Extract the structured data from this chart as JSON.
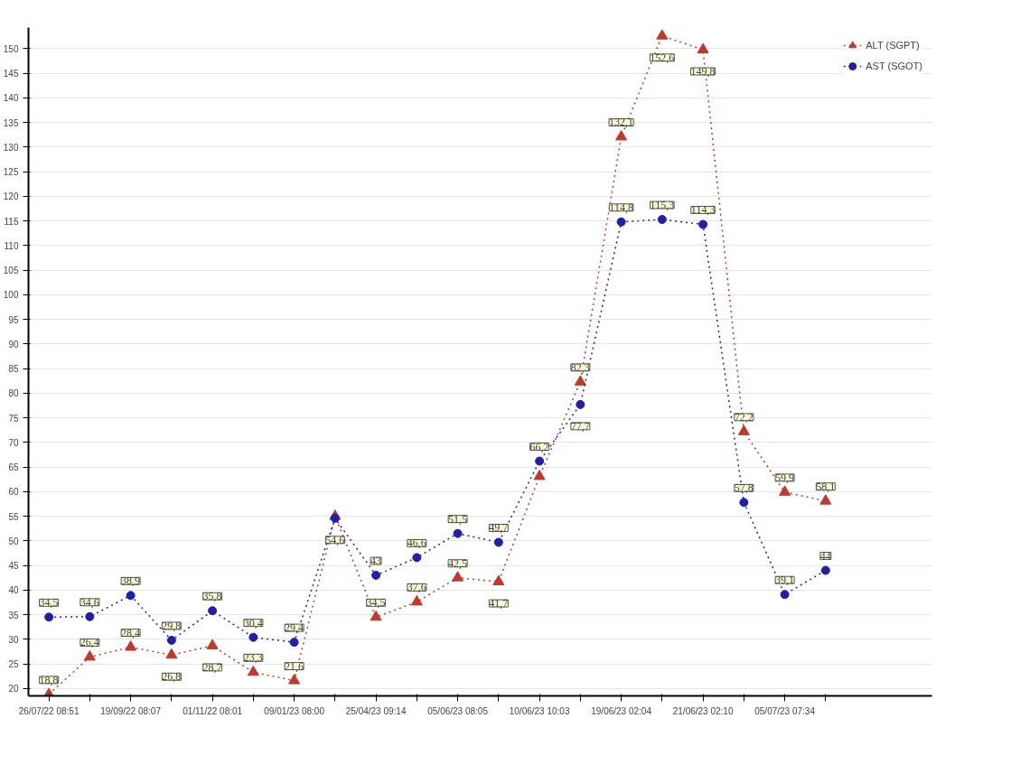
{
  "chart_data": {
    "type": "line",
    "categories": [
      "26/07/22 08:51",
      null,
      "19/09/22 08:07",
      null,
      "01/11/22 08:01",
      null,
      "09/01/23 08:00",
      null,
      "25/04/23 09:14",
      null,
      "05/06/23 08:05",
      null,
      "10/06/23 10:03",
      null,
      "19/06/23 02:04",
      null,
      "21/06/23 02:10",
      null,
      "05/07/23 07:34",
      null
    ],
    "series": [
      {
        "name": "ALT (SGPT)",
        "color": "#c0392b",
        "marker": "triangle",
        "values": [
          18.8,
          26.4,
          28.4,
          26.8,
          28.7,
          23.3,
          21.6,
          55,
          34.5,
          37.6,
          42.5,
          41.7,
          63.1,
          82.3,
          132.1,
          152.6,
          149.8,
          72.2,
          59.9,
          58.1
        ],
        "value_labels": [
          "18,8",
          "26,4",
          "28,4",
          "26,8",
          "28,7",
          "23,3",
          "21,6",
          null,
          "34,5",
          "37,6",
          "42,5",
          "41,7",
          null,
          "82,3",
          "132,1",
          "152,6",
          "149,8",
          "72,2",
          "59,9",
          "58,1"
        ]
      },
      {
        "name": "AST (SGOT)",
        "color": "#1f1fa8",
        "marker": "circle",
        "values": [
          34.5,
          34.6,
          38.9,
          29.8,
          35.8,
          30.4,
          29.4,
          54.6,
          43,
          46.6,
          51.5,
          49.7,
          66.2,
          77.7,
          114.8,
          115.3,
          114.3,
          57.8,
          39.1,
          44
        ],
        "value_labels": [
          "34,5",
          "34,6",
          "38,9",
          "29,8",
          "35,8",
          "30,4",
          "29,4",
          "54,6",
          "43",
          "46,6",
          "51,5",
          "49,7",
          "66,2",
          "77,7",
          "114,8",
          "115,3",
          "114,3",
          "57,8",
          "39,1",
          "44"
        ]
      }
    ],
    "ylim": [
      18.5,
      154.3
    ],
    "yticks": [
      20,
      25,
      30,
      35,
      40,
      45,
      50,
      55,
      60,
      65,
      70,
      75,
      80,
      85,
      90,
      95,
      100,
      105,
      110,
      115,
      120,
      125,
      130,
      135,
      140,
      145,
      150
    ],
    "grid": "y",
    "legend": "top right",
    "line_style": "dotted"
  }
}
